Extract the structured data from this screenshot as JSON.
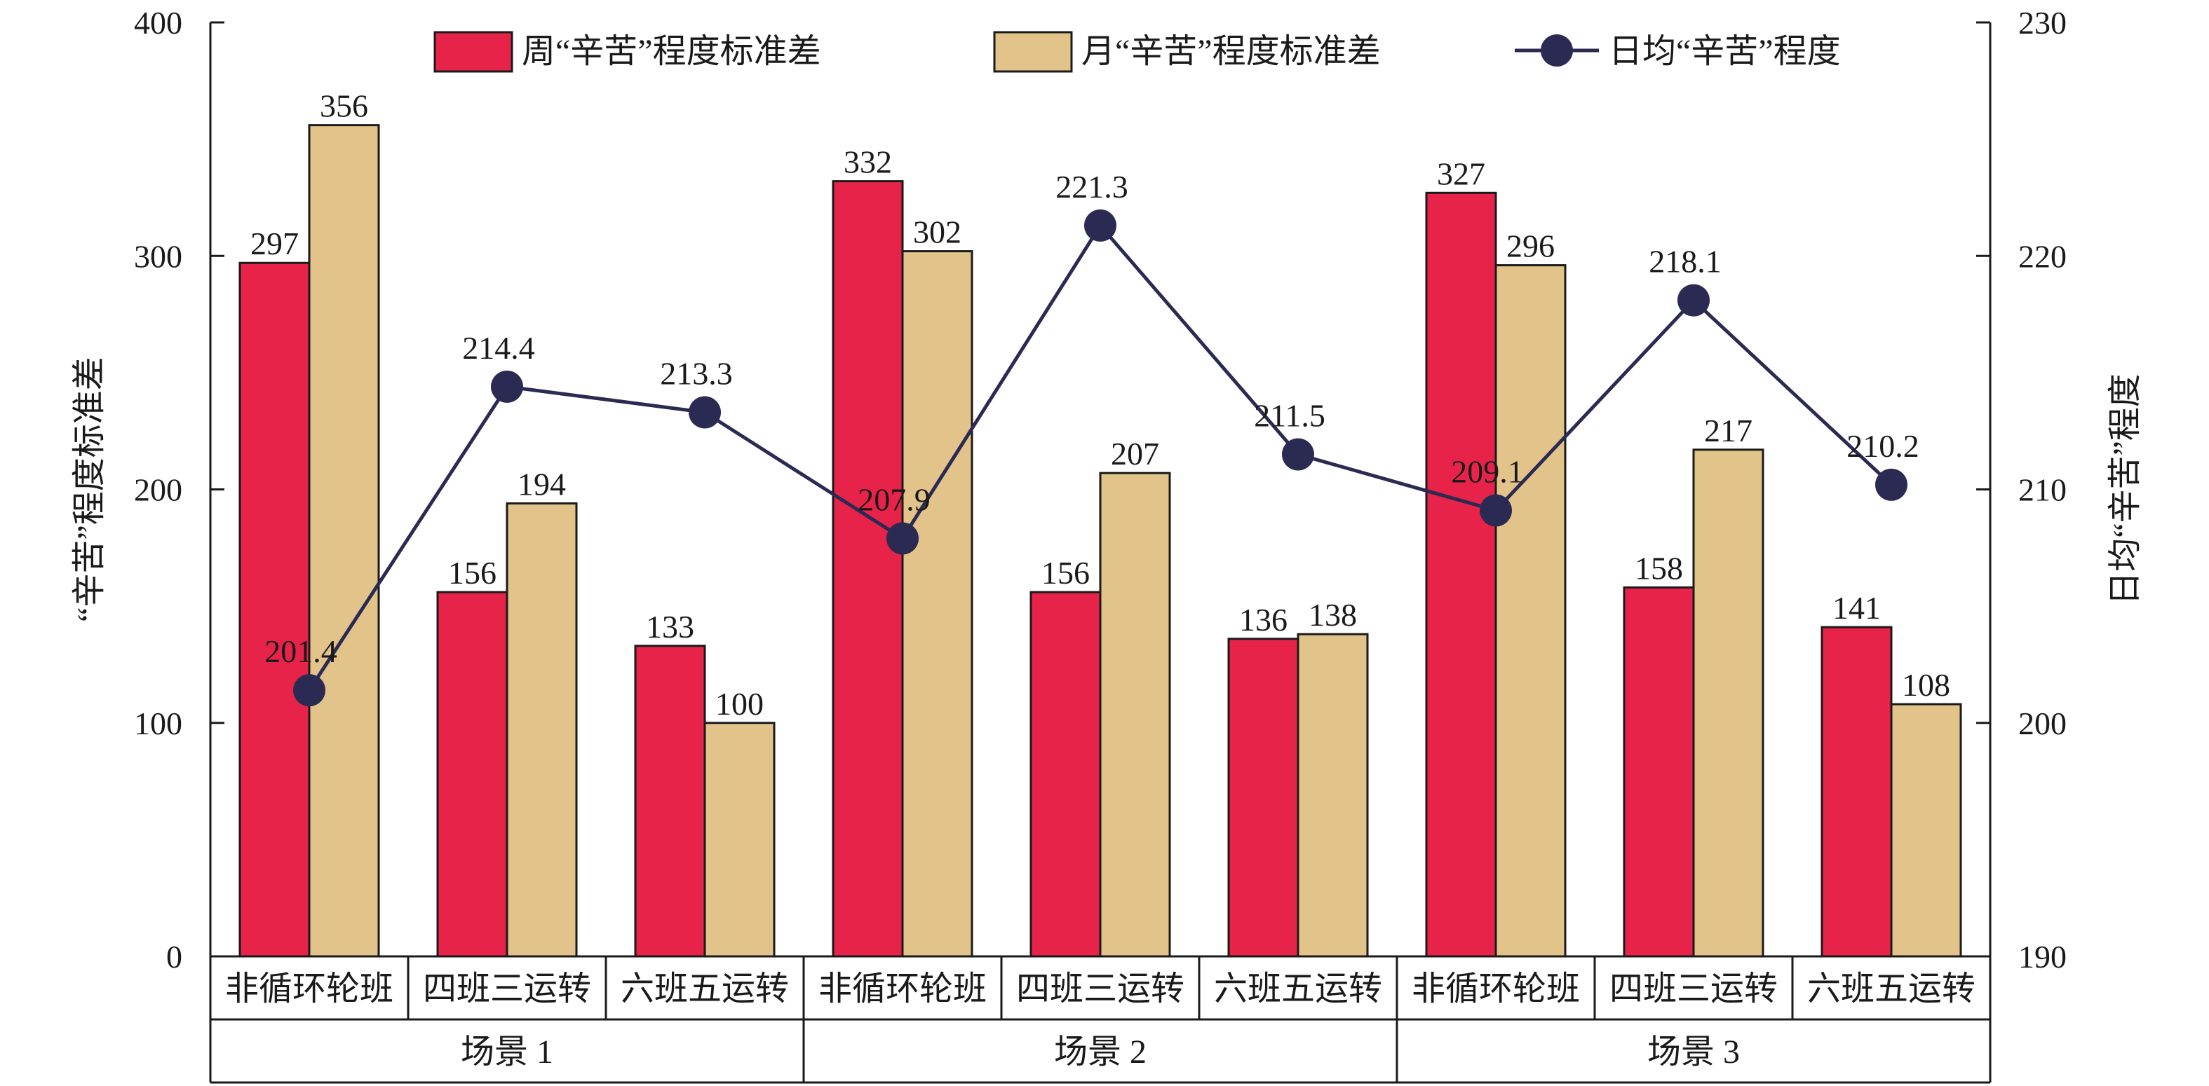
{
  "chart_data": {
    "type": "bar",
    "title": "",
    "ylabel": "“辛苦”程度标准差",
    "y2label": "日均“辛苦”程度",
    "ylim": [
      0,
      400
    ],
    "y2lim": [
      190,
      230
    ],
    "yticks": [
      0,
      100,
      200,
      300,
      400
    ],
    "y2ticks": [
      190,
      200,
      210,
      220,
      230
    ],
    "grid": false,
    "legend_position": "top",
    "groups": [
      "场景 1",
      "场景 2",
      "场景 3"
    ],
    "categories": [
      "非循环轮班",
      "四班三运转",
      "六班五运转",
      "非循环轮班",
      "四班三运转",
      "六班五运转",
      "非循环轮班",
      "四班三运转",
      "六班五运转"
    ],
    "series": [
      {
        "name": "周“辛苦”程度标准差",
        "type": "bar",
        "axis": "left",
        "color": "#E8234A",
        "values": [
          297,
          156,
          133,
          332,
          156,
          136,
          327,
          158,
          141
        ]
      },
      {
        "name": "月“辛苦”程度标准差",
        "type": "bar",
        "axis": "left",
        "color": "#E2C48A",
        "values": [
          356,
          194,
          100,
          302,
          207,
          138,
          296,
          217,
          108
        ]
      },
      {
        "name": "日均“辛苦”程度",
        "type": "line",
        "axis": "right",
        "color": "#2B2A52",
        "values": [
          201.4,
          214.4,
          213.3,
          207.9,
          221.3,
          211.5,
          209.1,
          218.1,
          210.2
        ]
      }
    ]
  }
}
